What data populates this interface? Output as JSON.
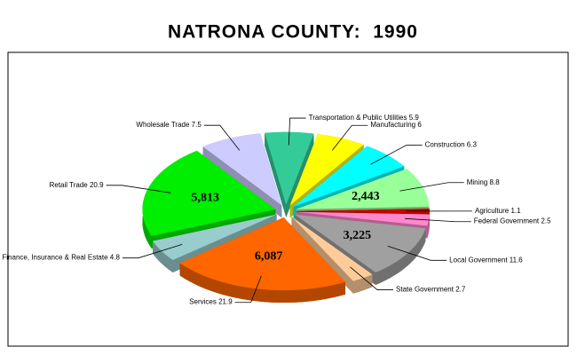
{
  "chart_data": {
    "type": "pie",
    "title": "NATRONA COUNTY:  1990",
    "categories": [
      "Manufacturing",
      "Construction",
      "Mining",
      "Agriculture",
      "Federal Government",
      "Local Government",
      "State Government",
      "Services",
      "Finance, Insurance & Real Estate",
      "Retail Trade",
      "Wholesale Trade",
      "Transportation & Public Utilities"
    ],
    "values": [
      6.0,
      6.3,
      8.8,
      1.1,
      2.5,
      11.6,
      2.7,
      21.9,
      4.8,
      20.9,
      7.5,
      5.9
    ],
    "colors": [
      "#ffff00",
      "#00ffff",
      "#99ff99",
      "#cc0000",
      "#ff88cc",
      "#a0a0a0",
      "#ffcc99",
      "#ff6600",
      "#99cccc",
      "#00ee00",
      "#ccccff",
      "#33cc99"
    ],
    "slice_labels": [
      null,
      null,
      {
        "value": 2443,
        "label": "2,443"
      },
      null,
      null,
      {
        "value": 3225,
        "label": "3,225"
      },
      null,
      {
        "value": 6087,
        "label": "6,087"
      },
      null,
      {
        "value": 5813,
        "label": "5,813"
      },
      null,
      null
    ],
    "exploded": true
  }
}
